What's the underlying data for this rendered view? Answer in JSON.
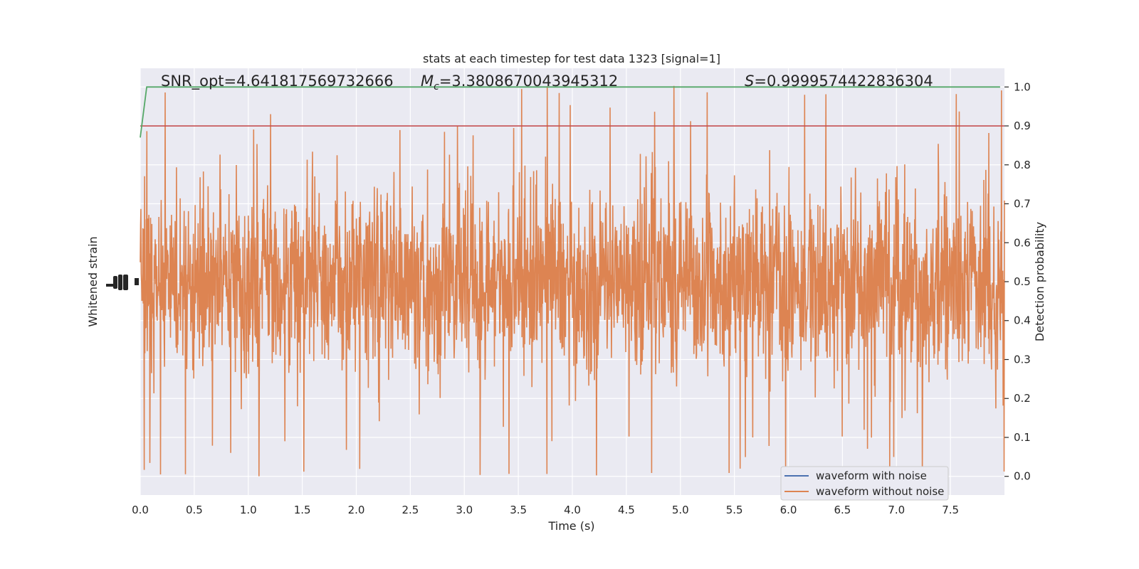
{
  "chart_data": {
    "type": "line",
    "title": "stats at each timestep for test data 1323 [signal=1]",
    "xlabel": "Time (s)",
    "ylabel_left": "Whitened strain",
    "ylabel_right": "Detection probability",
    "xlim": [
      0.0,
      8.0
    ],
    "ylim_right": [
      -0.048,
      1.048
    ],
    "xticks": [
      "0.0",
      "0.5",
      "1.0",
      "1.5",
      "2.0",
      "2.5",
      "3.0",
      "3.5",
      "4.0",
      "4.5",
      "5.0",
      "5.5",
      "6.0",
      "6.5",
      "7.0",
      "7.5"
    ],
    "yticks_right": [
      "0.0",
      "0.1",
      "0.2",
      "0.3",
      "0.4",
      "0.5",
      "0.6",
      "0.7",
      "0.8",
      "0.9",
      "1.0"
    ],
    "annotations": {
      "snr": "SNR_opt=4.641817569732666",
      "mc_symbol": "M",
      "mc_sub": "c",
      "mc_value": "=3.3808670043945312",
      "s_symbol": "S",
      "s_value": "=0.9999574422836304"
    },
    "threshold": 0.9,
    "detection_probability": {
      "x": [
        0.0,
        0.06,
        7.96
      ],
      "y": [
        0.87,
        1.0,
        1.0
      ]
    },
    "series": [
      {
        "name": "waveform with noise"
      },
      {
        "name": "waveform without noise"
      }
    ],
    "legend": "lower-right",
    "grid": true
  },
  "colors": {
    "background": "#eaeaf2",
    "grid": "#ffffff",
    "waveform_with_noise": "#4c72b0",
    "waveform_without_noise": "#dd8452",
    "detection_probability": "#55a868",
    "threshold": "#c44e52"
  }
}
